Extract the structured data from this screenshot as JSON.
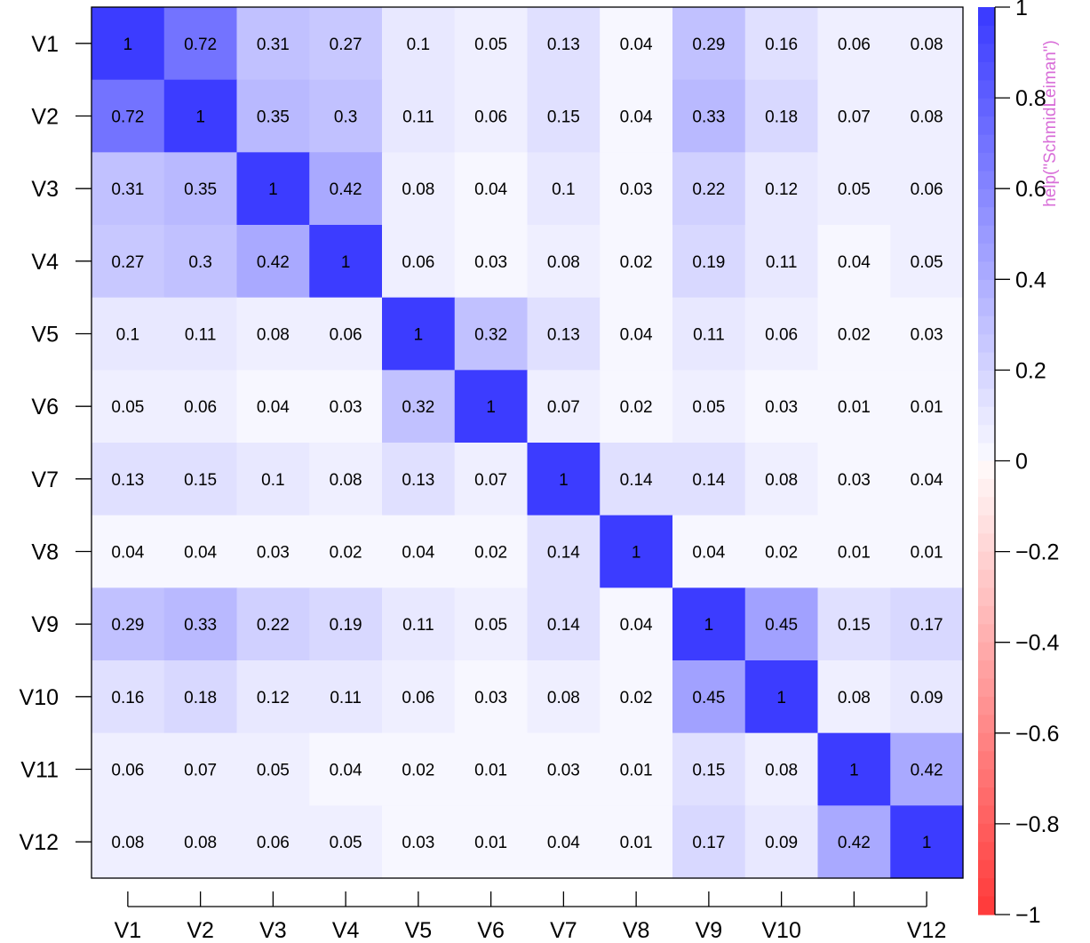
{
  "chart_data": {
    "type": "heatmap",
    "rows": [
      "V1",
      "V2",
      "V3",
      "V4",
      "V5",
      "V6",
      "V7",
      "V8",
      "V9",
      "V10",
      "V11",
      "V12"
    ],
    "x_tick_labels": [
      "V1",
      "V2",
      "V3",
      "V4",
      "V5",
      "V6",
      "V7",
      "V8",
      "V9",
      "V10",
      "",
      "V12"
    ],
    "values": [
      [
        1,
        0.72,
        0.31,
        0.27,
        0.1,
        0.05,
        0.13,
        0.04,
        0.29,
        0.16,
        0.06,
        0.08
      ],
      [
        0.72,
        1,
        0.35,
        0.3,
        0.11,
        0.06,
        0.15,
        0.04,
        0.33,
        0.18,
        0.07,
        0.08
      ],
      [
        0.31,
        0.35,
        1,
        0.42,
        0.08,
        0.04,
        0.1,
        0.03,
        0.22,
        0.12,
        0.05,
        0.06
      ],
      [
        0.27,
        0.3,
        0.42,
        1,
        0.06,
        0.03,
        0.08,
        0.02,
        0.19,
        0.11,
        0.04,
        0.05
      ],
      [
        0.1,
        0.11,
        0.08,
        0.06,
        1,
        0.32,
        0.13,
        0.04,
        0.11,
        0.06,
        0.02,
        0.03
      ],
      [
        0.05,
        0.06,
        0.04,
        0.03,
        0.32,
        1,
        0.07,
        0.02,
        0.05,
        0.03,
        0.01,
        0.01
      ],
      [
        0.13,
        0.15,
        0.1,
        0.08,
        0.13,
        0.07,
        1,
        0.14,
        0.14,
        0.08,
        0.03,
        0.04
      ],
      [
        0.04,
        0.04,
        0.03,
        0.02,
        0.04,
        0.02,
        0.14,
        1,
        0.04,
        0.02,
        0.01,
        0.01
      ],
      [
        0.29,
        0.33,
        0.22,
        0.19,
        0.11,
        0.05,
        0.14,
        0.04,
        1,
        0.45,
        0.15,
        0.17
      ],
      [
        0.16,
        0.18,
        0.12,
        0.11,
        0.06,
        0.03,
        0.08,
        0.02,
        0.45,
        1,
        0.08,
        0.09
      ],
      [
        0.06,
        0.07,
        0.05,
        0.04,
        0.02,
        0.01,
        0.03,
        0.01,
        0.15,
        0.08,
        1,
        0.42
      ],
      [
        0.08,
        0.08,
        0.06,
        0.05,
        0.03,
        0.01,
        0.04,
        0.01,
        0.17,
        0.09,
        0.42,
        1
      ]
    ],
    "colorbar": {
      "range": [
        -1,
        1
      ],
      "ticks": [
        "1",
        "0.8",
        "0.6",
        "0.4",
        "0.2",
        "0",
        "−0.2",
        "−0.4",
        "−0.6",
        "−0.8",
        "−1"
      ],
      "tick_values": [
        1,
        0.8,
        0.6,
        0.4,
        0.2,
        0,
        -0.2,
        -0.4,
        -0.6,
        -0.8,
        -1
      ],
      "positive_color": "#3c3cff",
      "negative_color": "#ff3c3c",
      "neutral_color": "#ffffff",
      "bins_per_side": 25
    },
    "overlay_text": "help(\"SchmidLeiman\")",
    "overlay_color": "#d86ed8",
    "grid": false,
    "legend": "right"
  }
}
